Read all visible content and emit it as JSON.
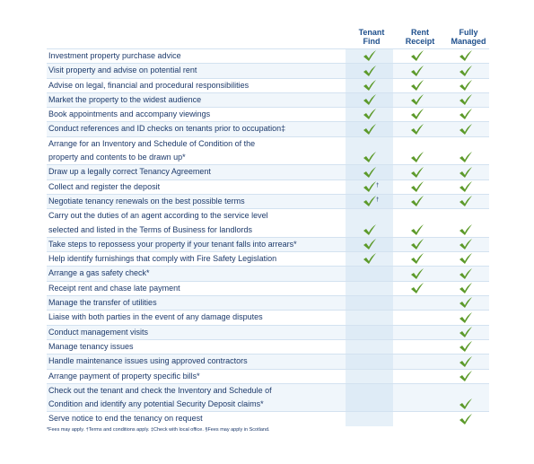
{
  "columns": [
    "Tenant Find",
    "Rent Receipt",
    "Fully Managed"
  ],
  "rows": [
    {
      "lines": [
        "Investment property purchase advice"
      ],
      "cells": [
        {
          "check": true
        },
        {
          "check": true
        },
        {
          "check": true
        }
      ]
    },
    {
      "lines": [
        "Visit property and advise on potential rent"
      ],
      "cells": [
        {
          "check": true
        },
        {
          "check": true
        },
        {
          "check": true
        }
      ]
    },
    {
      "lines": [
        "Advise on legal, financial and procedural responsibilities"
      ],
      "cells": [
        {
          "check": true
        },
        {
          "check": true
        },
        {
          "check": true
        }
      ]
    },
    {
      "lines": [
        "Market the property to the widest audience"
      ],
      "cells": [
        {
          "check": true
        },
        {
          "check": true
        },
        {
          "check": true
        }
      ]
    },
    {
      "lines": [
        "Book appointments and accompany viewings"
      ],
      "cells": [
        {
          "check": true
        },
        {
          "check": true
        },
        {
          "check": true
        }
      ]
    },
    {
      "lines": [
        "Conduct references and ID checks on tenants prior to occupation‡"
      ],
      "cells": [
        {
          "check": true
        },
        {
          "check": true
        },
        {
          "check": true
        }
      ]
    },
    {
      "lines": [
        "Arrange for an Inventory and Schedule of Condition of the",
        "property and contents to be drawn up*"
      ],
      "cells": [
        {
          "check": true
        },
        {
          "check": true
        },
        {
          "check": true
        }
      ]
    },
    {
      "lines": [
        "Draw up a legally correct Tenancy Agreement"
      ],
      "cells": [
        {
          "check": true
        },
        {
          "check": true
        },
        {
          "check": true
        }
      ]
    },
    {
      "lines": [
        "Collect and register the deposit"
      ],
      "cells": [
        {
          "check": true,
          "note": "†"
        },
        {
          "check": true
        },
        {
          "check": true
        }
      ]
    },
    {
      "lines": [
        "Negotiate tenancy renewals on the best possible terms"
      ],
      "cells": [
        {
          "check": true,
          "note": "†"
        },
        {
          "check": true
        },
        {
          "check": true
        }
      ]
    },
    {
      "lines": [
        "Carry out the duties of an agent according to the service level",
        "selected and listed in the Terms of Business for landlords"
      ],
      "cells": [
        {
          "check": true
        },
        {
          "check": true
        },
        {
          "check": true
        }
      ]
    },
    {
      "lines": [
        "Take steps to repossess your property if your tenant falls into arrears*"
      ],
      "cells": [
        {
          "check": true
        },
        {
          "check": true
        },
        {
          "check": true
        }
      ]
    },
    {
      "lines": [
        "Help identify furnishings that comply with Fire Safety Legislation"
      ],
      "cells": [
        {
          "check": true
        },
        {
          "check": true
        },
        {
          "check": true
        }
      ]
    },
    {
      "lines": [
        "Arrange a gas safety check*"
      ],
      "cells": [
        {
          "check": false
        },
        {
          "check": true
        },
        {
          "check": true
        }
      ]
    },
    {
      "lines": [
        "Receipt rent and chase late payment"
      ],
      "cells": [
        {
          "check": false
        },
        {
          "check": true
        },
        {
          "check": true
        }
      ]
    },
    {
      "lines": [
        "Manage the transfer of utilities"
      ],
      "cells": [
        {
          "check": false
        },
        {
          "check": false
        },
        {
          "check": true
        }
      ]
    },
    {
      "lines": [
        "Liaise with both parties in the event of any damage disputes"
      ],
      "cells": [
        {
          "check": false
        },
        {
          "check": false
        },
        {
          "check": true
        }
      ]
    },
    {
      "lines": [
        "Conduct management visits"
      ],
      "cells": [
        {
          "check": false
        },
        {
          "check": false
        },
        {
          "check": true
        }
      ]
    },
    {
      "lines": [
        "Manage tenancy issues"
      ],
      "cells": [
        {
          "check": false
        },
        {
          "check": false
        },
        {
          "check": true
        }
      ]
    },
    {
      "lines": [
        "Handle maintenance issues using approved contractors"
      ],
      "cells": [
        {
          "check": false
        },
        {
          "check": false
        },
        {
          "check": true
        }
      ]
    },
    {
      "lines": [
        "Arrange payment of property specific bills*"
      ],
      "cells": [
        {
          "check": false
        },
        {
          "check": false
        },
        {
          "check": true
        }
      ]
    },
    {
      "lines": [
        "Check out the tenant and check the Inventory and Schedule of",
        "Condition and identify any potential Security Deposit claims*"
      ],
      "cells": [
        {
          "check": false
        },
        {
          "check": false
        },
        {
          "check": true
        }
      ]
    },
    {
      "lines": [
        "Serve notice to end the tenancy on request"
      ],
      "cells": [
        {
          "check": false
        },
        {
          "check": false
        },
        {
          "check": true
        }
      ]
    }
  ],
  "footnote": "*Fees may apply. †Terms and conditions apply. ‡Check with local office. §Fees may apply in Scotland."
}
